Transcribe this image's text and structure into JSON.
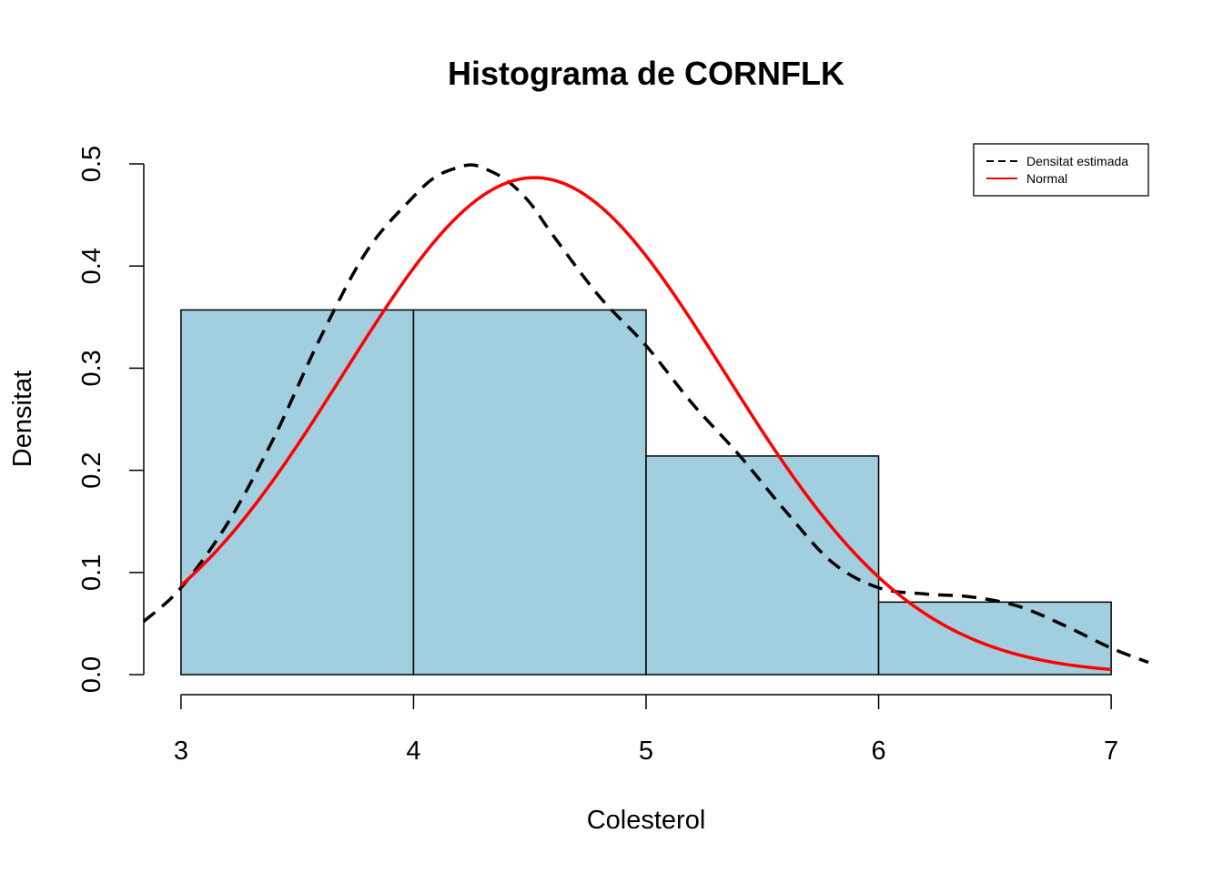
{
  "chart_data": {
    "type": "histogram",
    "title": "Histograma de CORNFLK",
    "xlabel": "Colesterol",
    "ylabel": "Densitat",
    "xlim": [
      2.84,
      7.16
    ],
    "ylim": [
      0,
      0.5
    ],
    "x_ticks": [
      "3",
      "4",
      "5",
      "6",
      "7"
    ],
    "y_ticks": [
      "0.0",
      "0.1",
      "0.2",
      "0.3",
      "0.4",
      "0.5"
    ],
    "bars": [
      {
        "from": 3,
        "to": 4,
        "density": 0.357
      },
      {
        "from": 4,
        "to": 5,
        "density": 0.357
      },
      {
        "from": 5,
        "to": 6,
        "density": 0.214
      },
      {
        "from": 6,
        "to": 7,
        "density": 0.071
      }
    ],
    "bar_fill": "#A1CFE0",
    "series": [
      {
        "name": "Densitat estimada",
        "style": "dashed",
        "color": "#000000",
        "x": [
          2.84,
          3.0,
          3.2,
          3.4,
          3.6,
          3.8,
          4.0,
          4.1,
          4.2,
          4.25,
          4.3,
          4.4,
          4.5,
          4.6,
          4.8,
          5.0,
          5.2,
          5.4,
          5.6,
          5.8,
          6.0,
          6.2,
          6.4,
          6.6,
          6.8,
          7.0,
          7.16
        ],
        "y": [
          0.052,
          0.085,
          0.148,
          0.232,
          0.33,
          0.415,
          0.468,
          0.488,
          0.497,
          0.499,
          0.496,
          0.484,
          0.462,
          0.43,
          0.37,
          0.322,
          0.265,
          0.215,
          0.16,
          0.11,
          0.085,
          0.079,
          0.076,
          0.067,
          0.048,
          0.026,
          0.012
        ]
      },
      {
        "name": "Normal",
        "style": "solid",
        "color": "#FF0000",
        "mean": 4.52,
        "sd": 0.82,
        "x_range": [
          3.0,
          7.0
        ]
      }
    ],
    "legend_position": "top-right"
  }
}
